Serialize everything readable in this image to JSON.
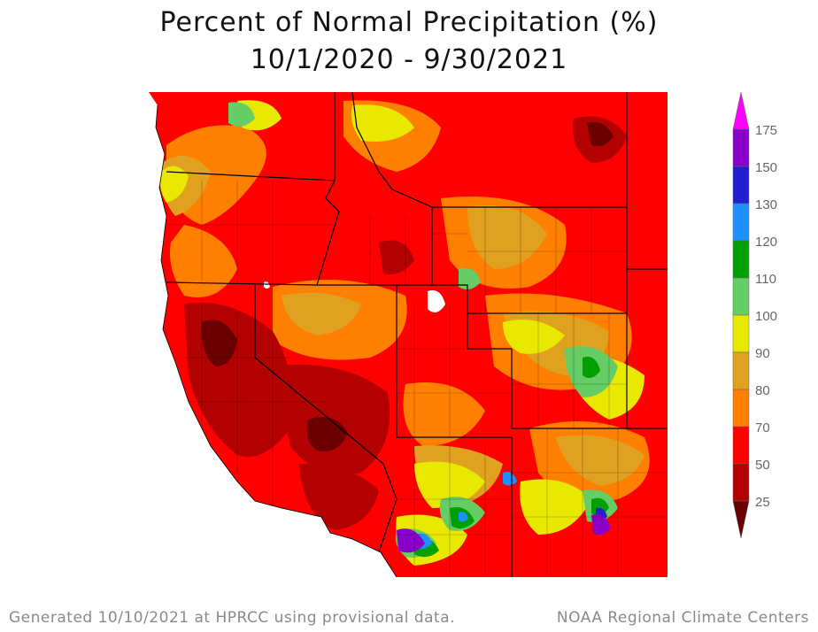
{
  "title": {
    "line1": "Percent of Normal Precipitation (%)",
    "line2": "10/1/2020 - 9/30/2021"
  },
  "footer": {
    "left": "Generated 10/10/2021 at HPRCC using provisional data.",
    "right": "NOAA Regional Climate Centers"
  },
  "legend": {
    "ticks": [
      "25",
      "50",
      "70",
      "80",
      "90",
      "100",
      "110",
      "120",
      "130",
      "150",
      "175"
    ],
    "bands": [
      {
        "label": "<25",
        "color": "#6b0000"
      },
      {
        "label": "25-50",
        "color": "#b30000"
      },
      {
        "label": "50-70",
        "color": "#ff0000"
      },
      {
        "label": "70-80",
        "color": "#ff7f00"
      },
      {
        "label": "80-90",
        "color": "#e0a020"
      },
      {
        "label": "90-100",
        "color": "#e8e800"
      },
      {
        "label": "100-110",
        "color": "#66cc66"
      },
      {
        "label": "110-120",
        "color": "#00a000"
      },
      {
        "label": "120-130",
        "color": "#1e90ff"
      },
      {
        "label": "130-150",
        "color": "#2020d0"
      },
      {
        "label": "150-175",
        "color": "#8a00c8"
      },
      {
        "label": ">175",
        "color": "#ff00ff"
      }
    ]
  },
  "map": {
    "background_color": "#ff0000",
    "border_color": "#000000"
  }
}
